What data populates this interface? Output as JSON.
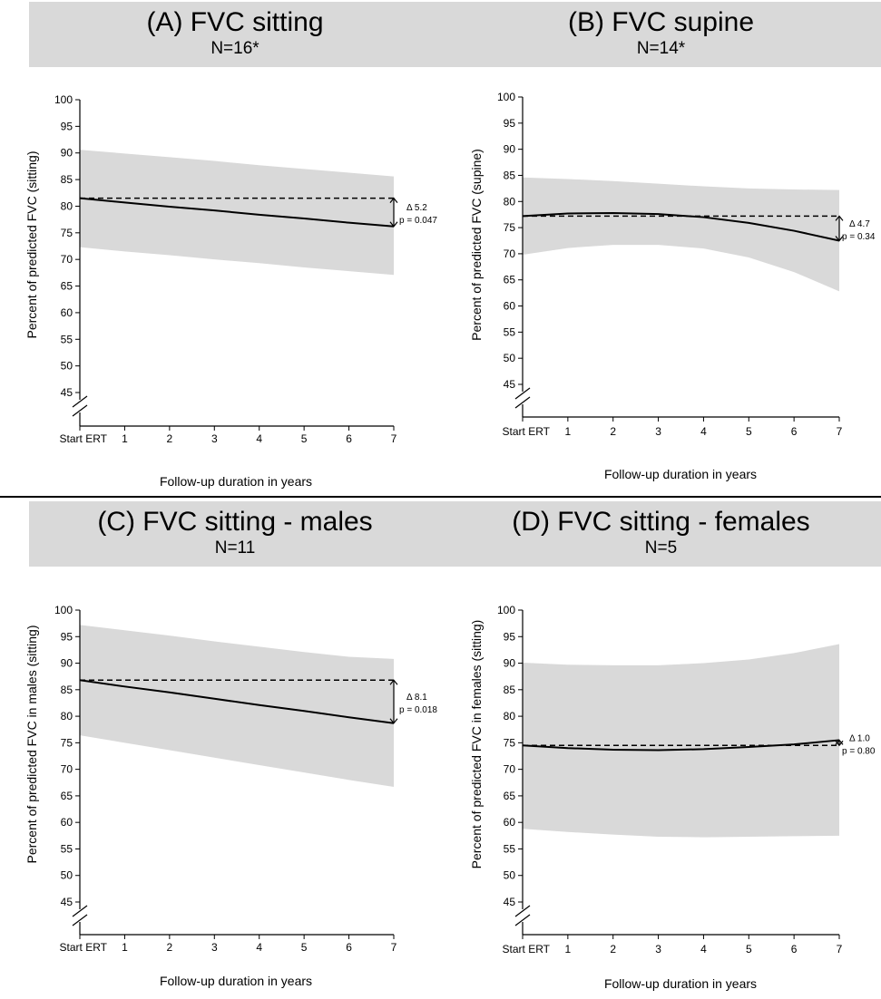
{
  "chart_data": [
    {
      "type": "line",
      "title": "(A) FVC sitting",
      "subtitle": "N=16*",
      "xlabel": "Follow-up duration in years",
      "ylabel": "Percent of predicted FVC (sitting)",
      "x_ticks": [
        "Start ERT",
        "1",
        "2",
        "3",
        "4",
        "5",
        "6",
        "7"
      ],
      "y_ticks": [
        "45",
        "50",
        "55",
        "60",
        "65",
        "70",
        "75",
        "80",
        "85",
        "90",
        "95",
        "100"
      ],
      "xlim": [
        0,
        7
      ],
      "ylim": [
        45,
        100
      ],
      "axis_break": true,
      "grid": false,
      "baseline": 81.5,
      "fit": {
        "x": [
          0,
          1,
          2,
          3,
          4,
          5,
          6,
          7
        ],
        "y": [
          81.5,
          80.7,
          79.9,
          79.2,
          78.4,
          77.7,
          76.9,
          76.2
        ]
      },
      "ci_upper": [
        90.6,
        89.9,
        89.2,
        88.5,
        87.7,
        87.0,
        86.3,
        85.6
      ],
      "ci_lower": [
        72.3,
        71.5,
        70.8,
        70.0,
        69.3,
        68.5,
        67.8,
        67.1
      ],
      "annotation": {
        "delta": "Δ 5.2",
        "p": "p = 0.047"
      }
    },
    {
      "type": "line",
      "title": "(B) FVC supine",
      "subtitle": "N=14*",
      "xlabel": "Follow-up duration in years",
      "ylabel": "Percent of predicted FVC (supine)",
      "x_ticks": [
        "Start ERT",
        "1",
        "2",
        "3",
        "4",
        "5",
        "6",
        "7"
      ],
      "y_ticks": [
        "45",
        "50",
        "55",
        "60",
        "65",
        "70",
        "75",
        "80",
        "85",
        "90",
        "95",
        "100"
      ],
      "xlim": [
        0,
        7
      ],
      "ylim": [
        45,
        100
      ],
      "axis_break": true,
      "grid": false,
      "baseline": 77.2,
      "fit": {
        "x": [
          0,
          1,
          2,
          3,
          4,
          5,
          6,
          7
        ],
        "y": [
          77.2,
          77.7,
          77.8,
          77.6,
          77.0,
          75.9,
          74.4,
          72.5
        ]
      },
      "ci_upper": [
        84.6,
        84.3,
        83.9,
        83.4,
        82.9,
        82.5,
        82.3,
        82.2
      ],
      "ci_lower": [
        69.8,
        71.1,
        71.7,
        71.7,
        71.0,
        69.3,
        66.5,
        62.8
      ],
      "annotation": {
        "delta": "Δ 4.7",
        "p": "p = 0.34"
      }
    },
    {
      "type": "line",
      "title": "(C) FVC sitting - males",
      "subtitle": "N=11",
      "xlabel": "Follow-up duration in years",
      "ylabel": "Percent of predicted FVC in males (sitting)",
      "x_ticks": [
        "Start ERT",
        "1",
        "2",
        "3",
        "4",
        "5",
        "6",
        "7"
      ],
      "y_ticks": [
        "45",
        "50",
        "55",
        "60",
        "65",
        "70",
        "75",
        "80",
        "85",
        "90",
        "95",
        "100"
      ],
      "xlim": [
        0,
        7
      ],
      "ylim": [
        45,
        100
      ],
      "axis_break": true,
      "grid": false,
      "baseline": 86.8,
      "fit": {
        "x": [
          0,
          1,
          2,
          3,
          4,
          5,
          6,
          7
        ],
        "y": [
          86.8,
          85.6,
          84.5,
          83.3,
          82.1,
          81.0,
          79.8,
          78.7
        ]
      },
      "ci_upper": [
        97.2,
        96.2,
        95.2,
        94.1,
        93.1,
        92.1,
        91.2,
        90.8
      ],
      "ci_lower": [
        76.4,
        75.0,
        73.6,
        72.2,
        70.8,
        69.4,
        68.0,
        66.7
      ],
      "annotation": {
        "delta": "Δ 8.1",
        "p": "p = 0.018"
      }
    },
    {
      "type": "line",
      "title": "(D) FVC sitting - females",
      "subtitle": "N=5",
      "xlabel": "Follow-up duration in years",
      "ylabel": "Percent of predicted FVC in females (sitting)",
      "x_ticks": [
        "Start ERT",
        "1",
        "2",
        "3",
        "4",
        "5",
        "6",
        "7"
      ],
      "y_ticks": [
        "45",
        "50",
        "55",
        "60",
        "65",
        "70",
        "75",
        "80",
        "85",
        "90",
        "95",
        "100"
      ],
      "xlim": [
        0,
        7
      ],
      "ylim": [
        45,
        100
      ],
      "axis_break": true,
      "grid": false,
      "baseline": 74.5,
      "fit": {
        "x": [
          0,
          1,
          2,
          3,
          4,
          5,
          6,
          7
        ],
        "y": [
          74.5,
          74.0,
          73.7,
          73.6,
          73.8,
          74.2,
          74.7,
          75.5
        ]
      },
      "ci_upper": [
        90.1,
        89.7,
        89.6,
        89.6,
        90.0,
        90.7,
        91.9,
        93.6
      ],
      "ci_lower": [
        58.8,
        58.2,
        57.7,
        57.3,
        57.2,
        57.3,
        57.4,
        57.5
      ],
      "annotation": {
        "delta": "Δ 1.0",
        "p": "p = 0.80"
      }
    }
  ]
}
